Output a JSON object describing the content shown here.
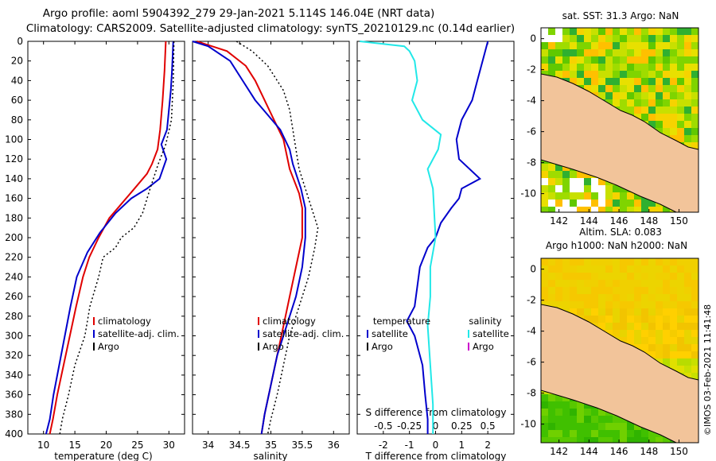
{
  "header": {
    "line1": "Argo profile: aoml 5904392_279 29-Jan-2021 5.114S 146.04E (NRT data)",
    "line2": "Climatology: CARS2009. Satellite-adjusted climatology: synTS_20210129.nc (0.14d earlier)"
  },
  "colors": {
    "clim": "#e00000",
    "sat": "#0000cc",
    "argo": "#000000",
    "sat_s": "#22e8e8",
    "argo_s": "#cc00cc",
    "land": "#f2c49a",
    "nodata": "#ffffff"
  },
  "depth_ticks": [
    0,
    20,
    40,
    60,
    80,
    100,
    120,
    140,
    160,
    180,
    200,
    220,
    240,
    260,
    280,
    300,
    320,
    340,
    360,
    380,
    400
  ],
  "chart_data": [
    {
      "id": "temperature",
      "type": "line",
      "xlabel": "temperature (deg C)",
      "xlim": [
        7.5,
        32.5
      ],
      "ylim": [
        400,
        0
      ],
      "xticks": [
        10,
        15,
        20,
        25,
        30
      ],
      "legend": {
        "position": "bottom-right",
        "items": [
          "climatology",
          "satellite-adj. clim.",
          "Argo"
        ]
      },
      "series": [
        {
          "name": "climatology",
          "style": "solid",
          "points": [
            [
              29.5,
              0
            ],
            [
              29.3,
              30
            ],
            [
              29.0,
              60
            ],
            [
              28.6,
              90
            ],
            [
              28.2,
              110
            ],
            [
              27.3,
              125
            ],
            [
              26.5,
              135
            ],
            [
              24.5,
              150
            ],
            [
              22.5,
              165
            ],
            [
              20.5,
              180
            ],
            [
              18.8,
              200
            ],
            [
              17.3,
              220
            ],
            [
              16.3,
              240
            ],
            [
              15.2,
              270
            ],
            [
              14.2,
              300
            ],
            [
              13.2,
              330
            ],
            [
              12.2,
              360
            ],
            [
              11.5,
              385
            ],
            [
              11.0,
              400
            ]
          ]
        },
        {
          "name": "satellite-adj. clim.",
          "style": "solid",
          "points": [
            [
              30.7,
              0
            ],
            [
              30.5,
              30
            ],
            [
              30.3,
              50
            ],
            [
              29.7,
              90
            ],
            [
              28.8,
              105
            ],
            [
              29.6,
              120
            ],
            [
              28.5,
              140
            ],
            [
              26.5,
              150
            ],
            [
              24.0,
              160
            ],
            [
              21.5,
              175
            ],
            [
              19.0,
              195
            ],
            [
              17.0,
              215
            ],
            [
              15.3,
              240
            ],
            [
              14.3,
              270
            ],
            [
              13.4,
              300
            ],
            [
              12.5,
              330
            ],
            [
              11.6,
              360
            ],
            [
              11.0,
              385
            ],
            [
              10.4,
              400
            ]
          ]
        },
        {
          "name": "Argo",
          "style": "dotted",
          "points": [
            [
              30.8,
              0
            ],
            [
              30.7,
              40
            ],
            [
              30.4,
              80
            ],
            [
              29.5,
              105
            ],
            [
              28.3,
              125
            ],
            [
              27.0,
              150
            ],
            [
              25.8,
              175
            ],
            [
              24.4,
              190
            ],
            [
              22.4,
              200
            ],
            [
              21.5,
              210
            ],
            [
              19.5,
              220
            ],
            [
              18.8,
              240
            ],
            [
              17.4,
              270
            ],
            [
              16.6,
              300
            ],
            [
              15.0,
              330
            ],
            [
              14.0,
              360
            ],
            [
              13.0,
              385
            ],
            [
              12.6,
              400
            ]
          ]
        }
      ]
    },
    {
      "id": "salinity",
      "type": "line",
      "xlabel": "salinity",
      "xlim": [
        33.75,
        36.25
      ],
      "ylim": [
        400,
        0
      ],
      "xticks": [
        34,
        34.5,
        35,
        35.5,
        36
      ],
      "legend": {
        "position": "bottom-right",
        "items": [
          "climatology",
          "satellite-adj. clim.",
          "Argo"
        ]
      },
      "series": [
        {
          "name": "climatology",
          "style": "solid",
          "points": [
            [
              33.82,
              0
            ],
            [
              34.3,
              10
            ],
            [
              34.6,
              25
            ],
            [
              34.75,
              40
            ],
            [
              34.9,
              60
            ],
            [
              35.05,
              80
            ],
            [
              35.2,
              100
            ],
            [
              35.3,
              130
            ],
            [
              35.45,
              155
            ],
            [
              35.5,
              170
            ],
            [
              35.5,
              200
            ],
            [
              35.4,
              230
            ],
            [
              35.3,
              260
            ],
            [
              35.2,
              290
            ],
            [
              35.1,
              320
            ],
            [
              35.0,
              350
            ],
            [
              34.9,
              380
            ],
            [
              34.85,
              400
            ]
          ]
        },
        {
          "name": "satellite-adj. clim.",
          "style": "solid",
          "points": [
            [
              33.75,
              0
            ],
            [
              34.0,
              5
            ],
            [
              34.35,
              20
            ],
            [
              34.55,
              40
            ],
            [
              34.75,
              60
            ],
            [
              34.95,
              75
            ],
            [
              35.15,
              90
            ],
            [
              35.3,
              110
            ],
            [
              35.35,
              125
            ],
            [
              35.48,
              150
            ],
            [
              35.55,
              170
            ],
            [
              35.55,
              200
            ],
            [
              35.5,
              230
            ],
            [
              35.4,
              260
            ],
            [
              35.25,
              290
            ],
            [
              35.1,
              320
            ],
            [
              35.0,
              350
            ],
            [
              34.9,
              380
            ],
            [
              34.85,
              400
            ]
          ]
        },
        {
          "name": "Argo",
          "style": "dotted",
          "points": [
            [
              34.45,
              0
            ],
            [
              34.7,
              10
            ],
            [
              34.95,
              25
            ],
            [
              35.2,
              50
            ],
            [
              35.3,
              70
            ],
            [
              35.35,
              90
            ],
            [
              35.4,
              110
            ],
            [
              35.45,
              130
            ],
            [
              35.55,
              150
            ],
            [
              35.65,
              170
            ],
            [
              35.75,
              190
            ],
            [
              35.7,
              210
            ],
            [
              35.6,
              240
            ],
            [
              35.45,
              270
            ],
            [
              35.3,
              300
            ],
            [
              35.2,
              330
            ],
            [
              35.1,
              360
            ],
            [
              35.0,
              385
            ],
            [
              34.95,
              400
            ]
          ]
        }
      ]
    },
    {
      "id": "difference",
      "type": "line",
      "xlabel": "T difference from climatology",
      "xlabel_top": "S difference from climatology",
      "xlim": [
        -3,
        3
      ],
      "ylim": [
        400,
        0
      ],
      "xticks": [
        -2,
        -1,
        0,
        1,
        2
      ],
      "xticks_salinity": [
        "-0.5",
        "-0.25",
        "0",
        "0.25",
        "0.5"
      ],
      "legend": {
        "position": "bottom",
        "group_t": "temperature",
        "group_s": "salinity",
        "items_t": [
          "satellite",
          "Argo"
        ],
        "items_s": [
          "satellite",
          "Argo"
        ]
      },
      "series": [
        {
          "name": "temperature satellite",
          "style": "solid",
          "points": [
            [
              2.0,
              0
            ],
            [
              1.8,
              20
            ],
            [
              1.6,
              40
            ],
            [
              1.4,
              60
            ],
            [
              1.0,
              80
            ],
            [
              0.8,
              100
            ],
            [
              0.9,
              120
            ],
            [
              1.7,
              140
            ],
            [
              1.0,
              150
            ],
            [
              0.9,
              160
            ],
            [
              0.6,
              170
            ],
            [
              0.2,
              185
            ],
            [
              0.0,
              200
            ],
            [
              -0.3,
              210
            ],
            [
              -0.6,
              230
            ],
            [
              -0.7,
              250
            ],
            [
              -0.8,
              270
            ],
            [
              -1.1,
              285
            ],
            [
              -0.8,
              300
            ],
            [
              -0.5,
              330
            ],
            [
              -0.4,
              360
            ],
            [
              -0.3,
              385
            ],
            [
              -0.3,
              400
            ]
          ]
        },
        {
          "name": "salinity satellite",
          "style": "solid",
          "points": [
            [
              -2.9,
              0
            ],
            [
              -1.2,
              5
            ],
            [
              -1.0,
              10
            ],
            [
              -0.8,
              20
            ],
            [
              -0.7,
              40
            ],
            [
              -0.9,
              60
            ],
            [
              -0.5,
              80
            ],
            [
              0.2,
              95
            ],
            [
              0.1,
              110
            ],
            [
              -0.3,
              130
            ],
            [
              -0.1,
              150
            ],
            [
              0.0,
              200
            ],
            [
              -0.2,
              230
            ],
            [
              -0.2,
              260
            ],
            [
              -0.3,
              290
            ],
            [
              -0.2,
              330
            ],
            [
              -0.1,
              370
            ],
            [
              -0.1,
              400
            ]
          ]
        }
      ]
    },
    {
      "id": "sst_map",
      "type": "heatmap",
      "title": "sat. SST: 31.3 Argo: NaN",
      "xticks": [
        142,
        144,
        146,
        148,
        150
      ],
      "yticks": [
        0,
        -2,
        -4,
        -6,
        -8,
        -10
      ],
      "xlim": [
        140.8,
        151.3
      ],
      "ylim": [
        -11.2,
        0.7
      ]
    },
    {
      "id": "sla_map",
      "type": "heatmap",
      "title_line1": "Altim. SLA: 0.083",
      "title_line2": "Argo h1000: NaN h2000: NaN",
      "xticks": [
        142,
        144,
        146,
        148,
        150
      ],
      "yticks": [
        0,
        -2,
        -4,
        -6,
        -8,
        -10
      ],
      "xlim": [
        140.8,
        151.3
      ],
      "ylim": [
        -11.2,
        0.7
      ]
    }
  ],
  "credit": "©IMOS 03-Feb-2021 11:41:48"
}
